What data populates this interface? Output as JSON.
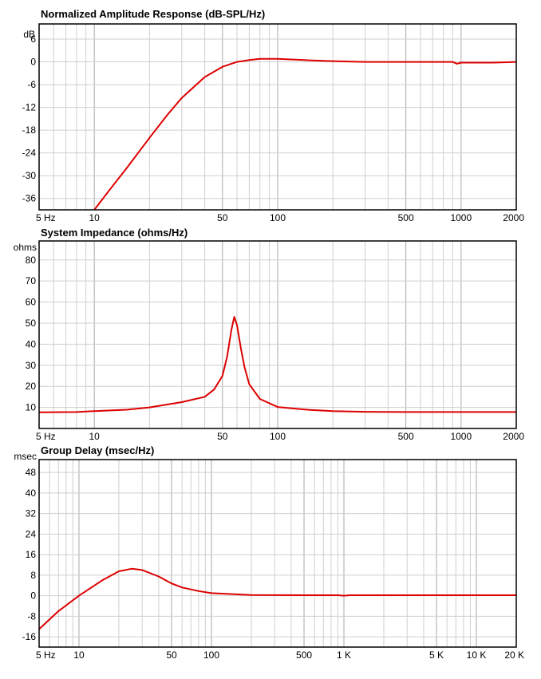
{
  "chart_data": [
    {
      "type": "line",
      "title": "Normalized Amplitude Response (dB-SPL/Hz)",
      "y_unit_label": "dB",
      "x_scale": "log",
      "xlim": [
        5,
        2000
      ],
      "ylim": [
        -39,
        10
      ],
      "x_ticks": [
        5,
        10,
        50,
        100,
        500,
        1000,
        2000
      ],
      "x_tick_labels": [
        "5 Hz",
        "10",
        "50",
        "100",
        "500",
        "1000",
        "2000"
      ],
      "y_ticks": [
        6,
        0,
        -6,
        -12,
        -18,
        -24,
        -30,
        -36
      ],
      "y_tick_labels": [
        "6",
        "0",
        "-6",
        "-12",
        "-18",
        "-24",
        "-30",
        "-36"
      ],
      "grid": true,
      "color": "#dd0000",
      "series": [
        {
          "x": [
            10,
            12,
            15,
            20,
            25,
            30,
            40,
            50,
            60,
            70,
            80,
            100,
            150,
            200,
            300,
            500,
            900,
            950,
            1000,
            1500,
            2000
          ],
          "y": [
            -39,
            -34,
            -28,
            -20,
            -14,
            -9.5,
            -4,
            -1.3,
            0,
            0.5,
            0.8,
            0.8,
            0.4,
            0.2,
            0,
            0,
            0,
            -0.5,
            -0.2,
            -0.2,
            0
          ]
        }
      ]
    },
    {
      "type": "line",
      "title": "System Impedance (ohms/Hz)",
      "y_unit_label": "ohms",
      "x_scale": "log",
      "xlim": [
        5,
        2000
      ],
      "ylim": [
        0,
        89
      ],
      "x_ticks": [
        5,
        10,
        50,
        100,
        500,
        1000,
        2000
      ],
      "x_tick_labels": [
        "5 Hz",
        "10",
        "50",
        "100",
        "500",
        "1000",
        "2000"
      ],
      "y_ticks": [
        80,
        70,
        60,
        50,
        40,
        30,
        20,
        10
      ],
      "y_tick_labels": [
        "80",
        "70",
        "60",
        "50",
        "40",
        "30",
        "20",
        "10"
      ],
      "grid": true,
      "color": "#dd0000",
      "series": [
        {
          "x": [
            5,
            8,
            10,
            15,
            20,
            30,
            40,
            45,
            50,
            53,
            56,
            58,
            60,
            63,
            66,
            70,
            80,
            100,
            150,
            200,
            300,
            500,
            1000,
            2000
          ],
          "y": [
            7.7,
            7.8,
            8.2,
            8.9,
            10,
            12.5,
            15,
            18.5,
            25,
            34,
            47,
            53,
            49,
            38,
            29,
            21,
            14,
            10.2,
            8.8,
            8.2,
            7.9,
            7.8,
            7.8,
            7.8
          ]
        }
      ]
    },
    {
      "type": "line",
      "title": "Group Delay (msec/Hz)",
      "y_unit_label": "msec",
      "x_scale": "log",
      "xlim": [
        5,
        20000
      ],
      "ylim": [
        -20,
        53
      ],
      "x_ticks": [
        5,
        10,
        50,
        100,
        500,
        1000,
        5000,
        10000,
        20000
      ],
      "x_tick_labels": [
        "5 Hz",
        "10",
        "50",
        "100",
        "500",
        "1 K",
        "5 K",
        "10 K",
        "20 K"
      ],
      "y_ticks": [
        48,
        40,
        32,
        24,
        16,
        8,
        0,
        -8,
        -16
      ],
      "y_tick_labels": [
        "48",
        "40",
        "32",
        "24",
        "16",
        "8",
        "0",
        "-8",
        "-16"
      ],
      "grid": true,
      "color": "#dd0000",
      "series": [
        {
          "x": [
            5,
            7,
            10,
            15,
            20,
            25,
            30,
            40,
            50,
            60,
            80,
            100,
            150,
            200,
            500,
            900,
            1000,
            1100,
            2000,
            5000,
            20000
          ],
          "y": [
            -13,
            -6,
            0,
            6,
            9.5,
            10.5,
            10,
            7.5,
            4.8,
            3.2,
            1.8,
            1,
            0.6,
            0.3,
            0.2,
            0.2,
            0,
            0.2,
            0.2,
            0.2,
            0.2
          ]
        }
      ]
    }
  ]
}
